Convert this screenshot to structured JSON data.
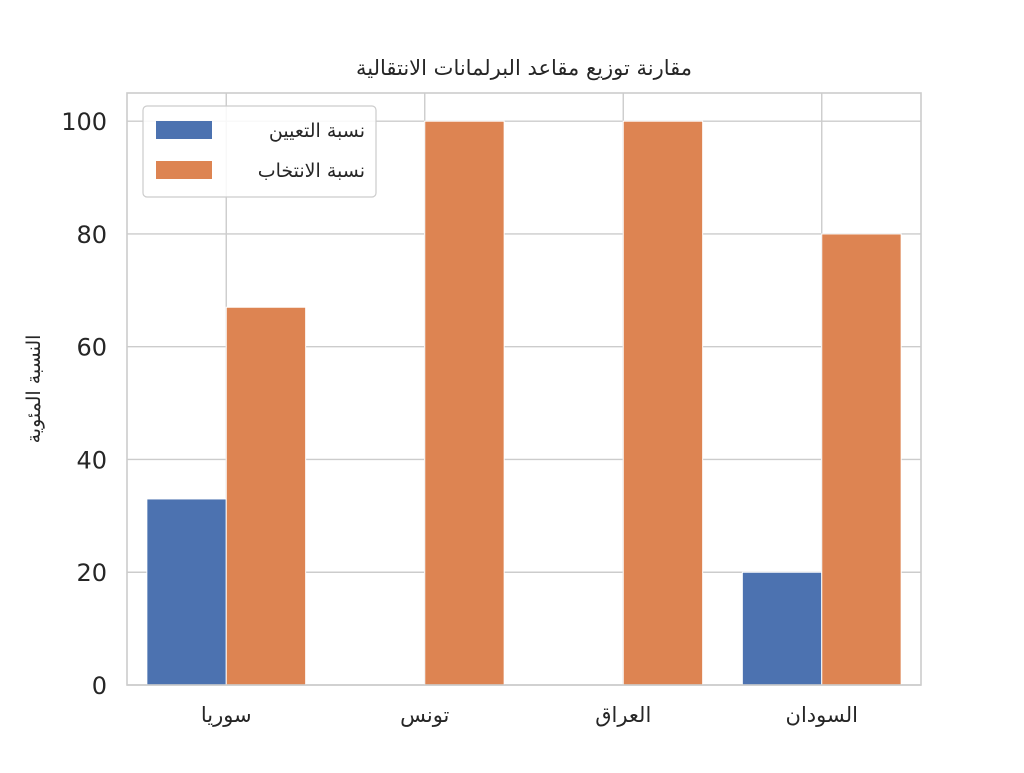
{
  "chart_data": {
    "type": "bar",
    "title": "مقارنة توزيع مقاعد البرلمانات الانتقالية",
    "xlabel": "",
    "ylabel": "النسبة المئوية",
    "categories": [
      "سوريا",
      "تونس",
      "العراق",
      "السودان"
    ],
    "series": [
      {
        "name": "نسبة التعيين",
        "values": [
          33,
          0,
          0,
          20
        ],
        "color": "#4c72b0"
      },
      {
        "name": "نسبة الانتخاب",
        "values": [
          67,
          100,
          100,
          80
        ],
        "color": "#dd8452"
      }
    ],
    "ylim": [
      0,
      105
    ],
    "yticks": [
      0,
      20,
      40,
      60,
      80,
      100
    ],
    "grid": true,
    "legend_position": "top-left"
  }
}
